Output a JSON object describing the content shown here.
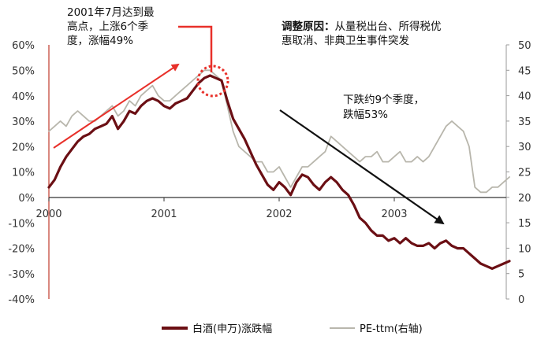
{
  "chart_data": {
    "type": "line",
    "title": "",
    "left_axis": {
      "ticks": [
        "-40%",
        "-30%",
        "-20%",
        "-10%",
        "0%",
        "10%",
        "20%",
        "30%",
        "40%",
        "50%",
        "60%"
      ],
      "range": [
        -40,
        60
      ],
      "unit": "%"
    },
    "right_axis": {
      "ticks": [
        "0",
        "5",
        "10",
        "15",
        "20",
        "25",
        "30",
        "35",
        "40",
        "45",
        "50"
      ],
      "range": [
        0,
        50
      ]
    },
    "x_axis": {
      "ticks": [
        "2000",
        "2001",
        "2002",
        "2003"
      ],
      "range": [
        2000.0,
        2004.0
      ]
    },
    "grid": false,
    "legend_position": "bottom",
    "series": [
      {
        "name": "白酒(申万)涨跌幅",
        "axis": "left",
        "color": "#6b0f14",
        "x": [
          2000.0,
          2000.05,
          2000.1,
          2000.15,
          2000.2,
          2000.25,
          2000.3,
          2000.35,
          2000.4,
          2000.45,
          2000.5,
          2000.55,
          2000.6,
          2000.65,
          2000.7,
          2000.75,
          2000.8,
          2000.85,
          2000.9,
          2000.95,
          2001.0,
          2001.05,
          2001.1,
          2001.15,
          2001.2,
          2001.25,
          2001.3,
          2001.35,
          2001.4,
          2001.45,
          2001.5,
          2001.55,
          2001.6,
          2001.65,
          2001.7,
          2001.75,
          2001.8,
          2001.85,
          2001.9,
          2001.95,
          2002.0,
          2002.05,
          2002.1,
          2002.15,
          2002.2,
          2002.25,
          2002.3,
          2002.35,
          2002.4,
          2002.45,
          2002.5,
          2002.55,
          2002.6,
          2002.65,
          2002.7,
          2002.75,
          2002.8,
          2002.85,
          2002.9,
          2002.95,
          2003.0,
          2003.05,
          2003.1,
          2003.15,
          2003.2,
          2003.25,
          2003.3,
          2003.35,
          2003.4,
          2003.45,
          2003.5,
          2003.55,
          2003.6,
          2003.65,
          2003.7,
          2003.75,
          2003.8,
          2003.85,
          2003.9,
          2003.95,
          2004.0
        ],
        "values": [
          4,
          7,
          12,
          16,
          19,
          22,
          24,
          25,
          27,
          28,
          29,
          32,
          27,
          30,
          34,
          33,
          36,
          38,
          39,
          38,
          36,
          35,
          37,
          38,
          39,
          42,
          45,
          47,
          48,
          47,
          46,
          38,
          31,
          27,
          23,
          18,
          13,
          9,
          5,
          3,
          6,
          4,
          1,
          6,
          9,
          8,
          5,
          3,
          6,
          8,
          6,
          3,
          1,
          -3,
          -8,
          -10,
          -13,
          -15,
          -15,
          -17,
          -16,
          -18,
          -16,
          -18,
          -19,
          -19,
          -18,
          -20,
          -18,
          -17,
          -19,
          -20,
          -20,
          -22,
          -24,
          -26,
          -27,
          -28,
          -27,
          -26,
          -25
        ]
      },
      {
        "name": "PE-ttm(右轴)",
        "axis": "right",
        "color": "#b8b6ac",
        "x": [
          2000.0,
          2000.05,
          2000.1,
          2000.15,
          2000.2,
          2000.25,
          2000.3,
          2000.35,
          2000.4,
          2000.45,
          2000.5,
          2000.55,
          2000.6,
          2000.65,
          2000.7,
          2000.75,
          2000.8,
          2000.85,
          2000.9,
          2000.95,
          2001.0,
          2001.05,
          2001.1,
          2001.15,
          2001.2,
          2001.25,
          2001.3,
          2001.35,
          2001.4,
          2001.45,
          2001.5,
          2001.55,
          2001.6,
          2001.65,
          2001.7,
          2001.75,
          2001.8,
          2001.85,
          2001.9,
          2001.95,
          2002.0,
          2002.05,
          2002.1,
          2002.15,
          2002.2,
          2002.25,
          2002.3,
          2002.35,
          2002.4,
          2002.45,
          2002.5,
          2002.55,
          2002.6,
          2002.65,
          2002.7,
          2002.75,
          2002.8,
          2002.85,
          2002.9,
          2002.95,
          2003.0,
          2003.05,
          2003.1,
          2003.15,
          2003.2,
          2003.25,
          2003.3,
          2003.35,
          2003.4,
          2003.45,
          2003.5,
          2003.55,
          2003.6,
          2003.65,
          2003.7,
          2003.75,
          2003.8,
          2003.85,
          2003.9,
          2003.95,
          2004.0
        ],
        "values": [
          33,
          34,
          35,
          34,
          36,
          37,
          36,
          35,
          35,
          36,
          37,
          38,
          36,
          37,
          39,
          38,
          40,
          41,
          42,
          40,
          39,
          39,
          40,
          41,
          42,
          43,
          44,
          45,
          45,
          44,
          43,
          38,
          33,
          30,
          29,
          28,
          27,
          27,
          25,
          25,
          26,
          24,
          22,
          24,
          26,
          26,
          27,
          28,
          29,
          32,
          31,
          30,
          29,
          28,
          27,
          28,
          28,
          29,
          27,
          27,
          28,
          29,
          27,
          27,
          28,
          27,
          28,
          30,
          32,
          34,
          35,
          34,
          33,
          30,
          22,
          21,
          21,
          22,
          22,
          23,
          24
        ]
      }
    ],
    "annotations": {
      "peak_note": [
        "2001年7月达到最",
        "高点，上涨6个季",
        "度，涨幅49%"
      ],
      "reason_label": "调整原因：",
      "reason_text_1": "从量税出台、所得税优",
      "reason_text_2": "惠取消、非典卫生事件突发",
      "decline_note": [
        "下跌约9个季度，",
        "跌幅53%"
      ]
    }
  }
}
